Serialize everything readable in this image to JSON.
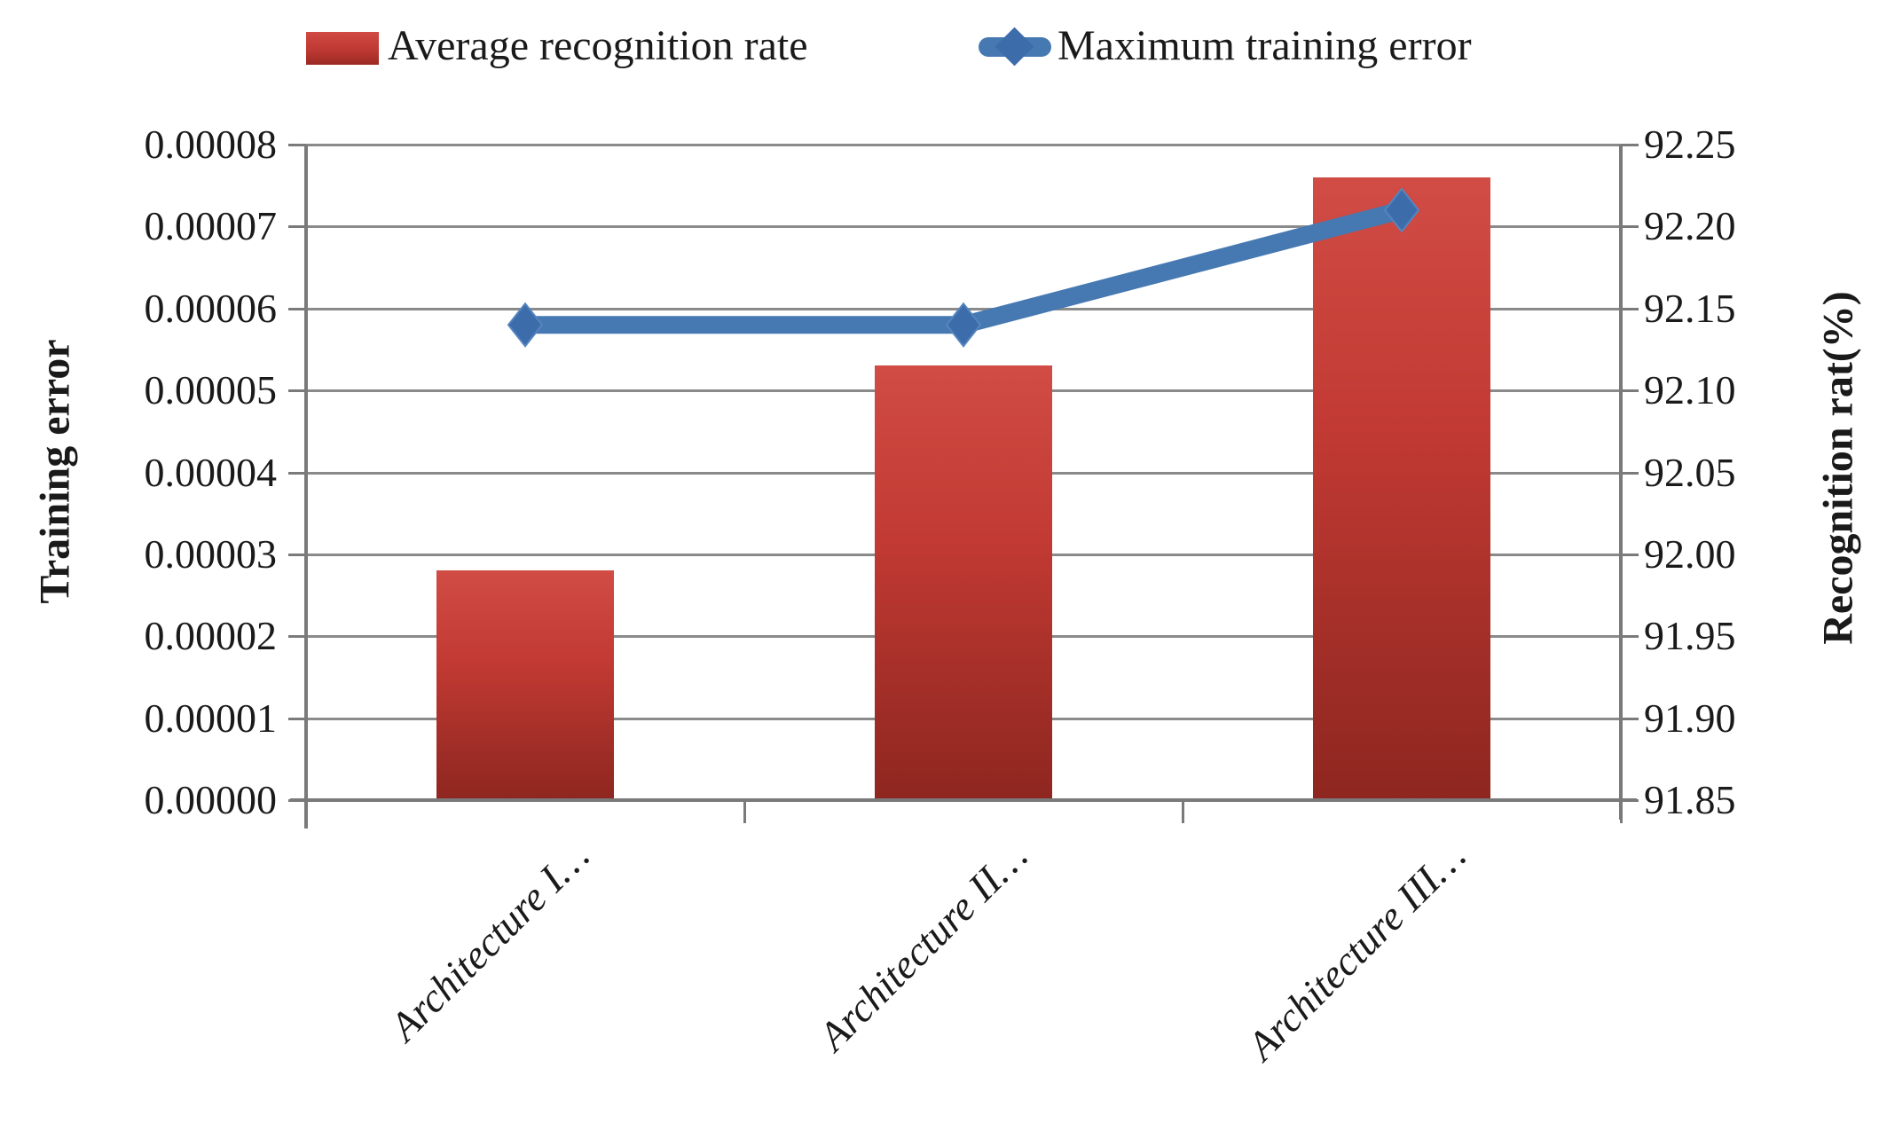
{
  "chart_data": {
    "type": "combo",
    "categories": [
      "Architecture I…",
      "Architecture II…",
      "Architecture III…"
    ],
    "series": [
      {
        "name": "Average recognition rate",
        "type": "bar",
        "axis": "left",
        "values": [
          2.8e-05,
          5.3e-05,
          7.6e-05
        ],
        "color": "#c0392f"
      },
      {
        "name": "Maximum training error",
        "type": "line",
        "axis": "right",
        "values": [
          92.14,
          92.14,
          92.21
        ],
        "color": "#4679b2",
        "marker": "diamond"
      }
    ],
    "left_axis": {
      "label": "Training error",
      "min": 0,
      "max": 8e-05,
      "step": 1e-05,
      "tick_values": [
        0,
        1e-05,
        2e-05,
        3e-05,
        4e-05,
        5e-05,
        6e-05,
        7e-05,
        8e-05
      ],
      "tick_labels": [
        "0.00000",
        "0.00001",
        "0.00002",
        "0.00003",
        "0.00004",
        "0.00005",
        "0.00006",
        "0.00007",
        "0.00008"
      ]
    },
    "right_axis": {
      "label": "Recognition rat(%)",
      "min": 91.85,
      "max": 92.25,
      "step": 0.05,
      "tick_values": [
        91.85,
        91.9,
        91.95,
        92.0,
        92.05,
        92.1,
        92.15,
        92.2,
        92.25
      ],
      "tick_labels": [
        "91.85",
        "91.90",
        "91.95",
        "92.00",
        "92.05",
        "92.10",
        "92.15",
        "92.20",
        "92.25"
      ]
    },
    "grid": true,
    "legend_position": "top"
  },
  "colors": {
    "bar_top": "#d04c44",
    "bar_bottom": "#8e261f",
    "line": "#4679b2",
    "marker": "#3d6cab",
    "grid": "#8a8a8a",
    "axis": "#7a7a7a",
    "text": "#1a1a1a"
  }
}
